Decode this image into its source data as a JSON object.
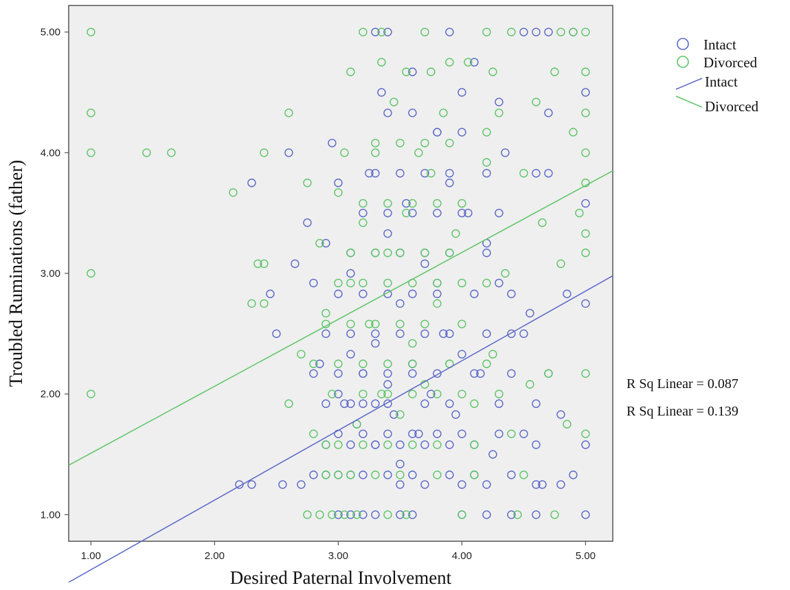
{
  "chart_data": {
    "type": "scatter",
    "xlabel": "Desired Paternal Involvement",
    "ylabel": "Troubled Ruminations (father)",
    "xlim": [
      0.82,
      5.22
    ],
    "ylim": [
      0.78,
      5.22
    ],
    "x_ticks": [
      "1.00",
      "2.00",
      "3.00",
      "4.00",
      "5.00"
    ],
    "y_ticks": [
      "1.00",
      "2.00",
      "3.00",
      "4.00",
      "5.00"
    ],
    "grid": false,
    "legend_position": "right, outside plot, top",
    "series": [
      {
        "name": "Intact",
        "marker": "circle",
        "color": "#5a67c8",
        "fit_line": {
          "name": "Intact",
          "x": [
            0.82,
            5.22
          ],
          "y": [
            0.44,
            2.98
          ]
        },
        "r_sq_label": "R Sq Linear = 0.087",
        "points": [
          [
            2.3,
            3.75
          ],
          [
            2.45,
            2.83
          ],
          [
            2.5,
            2.5
          ],
          [
            2.6,
            4.0
          ],
          [
            2.65,
            3.08
          ],
          [
            2.75,
            3.42
          ],
          [
            2.8,
            2.92
          ],
          [
            2.85,
            2.25
          ],
          [
            2.9,
            3.25
          ],
          [
            2.95,
            4.08
          ],
          [
            3.0,
            3.75
          ],
          [
            3.0,
            2.0
          ],
          [
            3.05,
            1.92
          ],
          [
            3.1,
            2.33
          ],
          [
            3.1,
            3.0
          ],
          [
            3.15,
            1.75
          ],
          [
            3.2,
            2.17
          ],
          [
            3.25,
            3.83
          ],
          [
            3.3,
            2.42
          ],
          [
            3.3,
            1.58
          ],
          [
            3.35,
            4.5
          ],
          [
            3.4,
            2.08
          ],
          [
            3.4,
            3.33
          ],
          [
            3.45,
            1.83
          ],
          [
            3.5,
            2.75
          ],
          [
            3.5,
            1.42
          ],
          [
            3.55,
            3.58
          ],
          [
            3.6,
            2.25
          ],
          [
            3.6,
            4.67
          ],
          [
            3.65,
            1.67
          ],
          [
            3.7,
            3.08
          ],
          [
            3.75,
            2.0
          ],
          [
            3.8,
            2.92
          ],
          [
            3.8,
            4.17
          ],
          [
            3.85,
            2.5
          ],
          [
            3.9,
            3.75
          ],
          [
            3.95,
            1.83
          ],
          [
            4.0,
            4.5
          ],
          [
            4.0,
            2.33
          ],
          [
            4.05,
            3.5
          ],
          [
            4.1,
            4.75
          ],
          [
            4.15,
            2.17
          ],
          [
            4.2,
            3.25
          ],
          [
            4.25,
            1.5
          ],
          [
            4.3,
            2.92
          ],
          [
            4.35,
            4.0
          ],
          [
            4.4,
            2.5
          ],
          [
            4.5,
            1.67
          ],
          [
            4.55,
            2.67
          ],
          [
            4.6,
            3.83
          ],
          [
            4.65,
            1.25
          ],
          [
            4.7,
            2.17
          ],
          [
            4.8,
            1.83
          ],
          [
            4.85,
            2.83
          ],
          [
            4.9,
            1.33
          ],
          [
            5.0,
            4.5
          ],
          [
            5.0,
            3.58
          ],
          [
            5.0,
            2.75
          ],
          [
            5.0,
            1.58
          ],
          [
            5.0,
            1.0
          ],
          [
            3.0,
            1.0
          ],
          [
            3.1,
            1.0
          ],
          [
            3.2,
            1.0
          ],
          [
            3.3,
            1.0
          ],
          [
            3.5,
            1.0
          ],
          [
            3.6,
            1.0
          ],
          [
            4.0,
            1.0
          ],
          [
            4.2,
            1.0
          ],
          [
            4.4,
            1.0
          ],
          [
            4.6,
            1.0
          ],
          [
            2.8,
            1.33
          ],
          [
            2.9,
            1.33
          ],
          [
            3.0,
            1.33
          ],
          [
            3.1,
            1.33
          ],
          [
            3.2,
            1.33
          ],
          [
            3.4,
            1.33
          ],
          [
            3.6,
            1.33
          ],
          [
            3.9,
            1.33
          ],
          [
            4.1,
            1.33
          ],
          [
            4.4,
            1.33
          ],
          [
            2.9,
            1.92
          ],
          [
            3.1,
            1.92
          ],
          [
            3.2,
            1.92
          ],
          [
            3.3,
            1.92
          ],
          [
            3.4,
            1.92
          ],
          [
            3.7,
            1.92
          ],
          [
            3.9,
            1.92
          ],
          [
            4.3,
            1.92
          ],
          [
            4.6,
            1.92
          ],
          [
            2.8,
            2.17
          ],
          [
            3.0,
            2.17
          ],
          [
            3.2,
            2.17
          ],
          [
            3.4,
            2.17
          ],
          [
            3.6,
            2.17
          ],
          [
            3.8,
            2.17
          ],
          [
            4.1,
            2.17
          ],
          [
            4.4,
            2.17
          ],
          [
            2.9,
            2.5
          ],
          [
            3.1,
            2.5
          ],
          [
            3.3,
            2.5
          ],
          [
            3.5,
            2.5
          ],
          [
            3.7,
            2.5
          ],
          [
            3.9,
            2.5
          ],
          [
            4.2,
            2.5
          ],
          [
            4.5,
            2.5
          ],
          [
            3.0,
            2.83
          ],
          [
            3.2,
            2.83
          ],
          [
            3.4,
            2.83
          ],
          [
            3.6,
            2.83
          ],
          [
            3.8,
            2.83
          ],
          [
            4.1,
            2.83
          ],
          [
            4.4,
            2.83
          ],
          [
            3.1,
            3.17
          ],
          [
            3.3,
            3.17
          ],
          [
            3.5,
            3.17
          ],
          [
            3.7,
            3.17
          ],
          [
            3.9,
            3.17
          ],
          [
            4.2,
            3.17
          ],
          [
            3.2,
            3.5
          ],
          [
            3.4,
            3.5
          ],
          [
            3.6,
            3.5
          ],
          [
            3.8,
            3.5
          ],
          [
            4.0,
            3.5
          ],
          [
            4.3,
            3.5
          ],
          [
            3.3,
            3.83
          ],
          [
            3.5,
            3.83
          ],
          [
            3.7,
            3.83
          ],
          [
            3.9,
            3.83
          ],
          [
            4.2,
            3.83
          ],
          [
            4.7,
            3.83
          ],
          [
            3.4,
            4.33
          ],
          [
            3.6,
            4.33
          ],
          [
            3.8,
            4.17
          ],
          [
            4.0,
            4.17
          ],
          [
            4.3,
            4.42
          ],
          [
            4.7,
            4.33
          ],
          [
            3.3,
            5.0
          ],
          [
            3.4,
            5.0
          ],
          [
            3.9,
            5.0
          ],
          [
            4.5,
            5.0
          ],
          [
            4.6,
            5.0
          ],
          [
            4.7,
            5.0
          ],
          [
            4.9,
            5.0
          ],
          [
            2.2,
            1.25
          ],
          [
            2.3,
            1.25
          ],
          [
            2.55,
            1.25
          ],
          [
            2.7,
            1.25
          ],
          [
            3.5,
            1.25
          ],
          [
            3.7,
            1.25
          ],
          [
            4.0,
            1.25
          ],
          [
            4.2,
            1.25
          ],
          [
            4.6,
            1.25
          ],
          [
            4.8,
            1.25
          ],
          [
            2.9,
            1.58
          ],
          [
            3.1,
            1.58
          ],
          [
            3.3,
            1.58
          ],
          [
            3.5,
            1.58
          ],
          [
            3.7,
            1.58
          ],
          [
            3.9,
            1.58
          ],
          [
            4.1,
            1.58
          ],
          [
            4.6,
            1.58
          ],
          [
            3.0,
            1.67
          ],
          [
            3.2,
            1.67
          ],
          [
            3.4,
            1.67
          ],
          [
            3.6,
            1.67
          ],
          [
            3.8,
            1.67
          ],
          [
            4.0,
            1.67
          ],
          [
            4.3,
            1.67
          ]
        ]
      },
      {
        "name": "Divorced",
        "marker": "circle",
        "color": "#5cc466",
        "fit_line": {
          "name": "Divorced",
          "x": [
            0.82,
            5.22
          ],
          "y": [
            1.41,
            3.85
          ]
        },
        "r_sq_label": "R Sq Linear = 0.139",
        "points": [
          [
            1.0,
            5.0
          ],
          [
            1.0,
            4.33
          ],
          [
            1.0,
            4.0
          ],
          [
            1.0,
            3.0
          ],
          [
            1.0,
            2.0
          ],
          [
            1.45,
            4.0
          ],
          [
            1.65,
            4.0
          ],
          [
            2.15,
            3.67
          ],
          [
            2.3,
            2.75
          ],
          [
            2.35,
            3.08
          ],
          [
            2.4,
            2.75
          ],
          [
            2.4,
            3.08
          ],
          [
            2.4,
            4.0
          ],
          [
            2.6,
            4.33
          ],
          [
            2.6,
            1.92
          ],
          [
            2.7,
            2.33
          ],
          [
            2.75,
            3.75
          ],
          [
            2.8,
            1.67
          ],
          [
            2.85,
            3.25
          ],
          [
            2.9,
            2.67
          ],
          [
            2.95,
            2.0
          ],
          [
            3.0,
            3.67
          ],
          [
            3.05,
            4.0
          ],
          [
            3.1,
            2.92
          ],
          [
            3.15,
            1.75
          ],
          [
            3.2,
            3.42
          ],
          [
            3.25,
            2.58
          ],
          [
            3.3,
            4.0
          ],
          [
            3.35,
            2.0
          ],
          [
            3.4,
            3.17
          ],
          [
            3.45,
            4.42
          ],
          [
            3.5,
            1.83
          ],
          [
            3.55,
            3.5
          ],
          [
            3.6,
            2.42
          ],
          [
            3.65,
            4.0
          ],
          [
            3.7,
            2.08
          ],
          [
            3.75,
            3.83
          ],
          [
            3.8,
            2.75
          ],
          [
            3.85,
            4.33
          ],
          [
            3.9,
            2.25
          ],
          [
            3.95,
            3.33
          ],
          [
            4.0,
            2.92
          ],
          [
            4.05,
            4.75
          ],
          [
            4.1,
            1.92
          ],
          [
            4.2,
            3.92
          ],
          [
            4.25,
            2.33
          ],
          [
            4.3,
            4.33
          ],
          [
            4.35,
            3.0
          ],
          [
            4.4,
            1.67
          ],
          [
            4.5,
            3.83
          ],
          [
            4.55,
            2.08
          ],
          [
            4.6,
            4.42
          ],
          [
            4.65,
            3.42
          ],
          [
            4.7,
            2.17
          ],
          [
            4.75,
            4.67
          ],
          [
            4.8,
            3.08
          ],
          [
            4.85,
            1.75
          ],
          [
            4.9,
            4.17
          ],
          [
            4.95,
            3.5
          ],
          [
            5.0,
            5.0
          ],
          [
            5.0,
            4.67
          ],
          [
            5.0,
            4.33
          ],
          [
            5.0,
            4.0
          ],
          [
            5.0,
            3.75
          ],
          [
            5.0,
            3.33
          ],
          [
            5.0,
            3.17
          ],
          [
            5.0,
            2.17
          ],
          [
            5.0,
            1.67
          ],
          [
            2.75,
            1.0
          ],
          [
            2.85,
            1.0
          ],
          [
            2.95,
            1.0
          ],
          [
            3.05,
            1.0
          ],
          [
            3.15,
            1.0
          ],
          [
            3.4,
            1.0
          ],
          [
            3.55,
            1.0
          ],
          [
            4.0,
            1.0
          ],
          [
            4.45,
            1.0
          ],
          [
            4.75,
            1.0
          ],
          [
            2.9,
            1.33
          ],
          [
            3.0,
            1.33
          ],
          [
            3.1,
            1.33
          ],
          [
            3.3,
            1.33
          ],
          [
            3.5,
            1.33
          ],
          [
            3.8,
            1.33
          ],
          [
            4.1,
            1.33
          ],
          [
            4.5,
            1.33
          ],
          [
            2.9,
            1.58
          ],
          [
            3.0,
            1.58
          ],
          [
            3.2,
            1.58
          ],
          [
            3.4,
            1.58
          ],
          [
            3.6,
            1.58
          ],
          [
            3.8,
            1.58
          ],
          [
            4.1,
            1.58
          ],
          [
            2.8,
            2.25
          ],
          [
            3.0,
            2.25
          ],
          [
            3.2,
            2.25
          ],
          [
            3.4,
            2.25
          ],
          [
            3.6,
            2.25
          ],
          [
            3.9,
            2.25
          ],
          [
            4.2,
            2.25
          ],
          [
            2.9,
            2.58
          ],
          [
            3.1,
            2.58
          ],
          [
            3.3,
            2.58
          ],
          [
            3.5,
            2.58
          ],
          [
            3.7,
            2.58
          ],
          [
            4.0,
            2.58
          ],
          [
            3.0,
            2.92
          ],
          [
            3.2,
            2.92
          ],
          [
            3.4,
            2.92
          ],
          [
            3.6,
            2.92
          ],
          [
            3.8,
            2.92
          ],
          [
            4.2,
            2.92
          ],
          [
            3.1,
            3.17
          ],
          [
            3.3,
            3.17
          ],
          [
            3.5,
            3.17
          ],
          [
            3.7,
            3.17
          ],
          [
            3.9,
            3.17
          ],
          [
            3.2,
            3.58
          ],
          [
            3.4,
            3.58
          ],
          [
            3.6,
            3.58
          ],
          [
            3.8,
            3.58
          ],
          [
            4.0,
            3.58
          ],
          [
            3.3,
            4.08
          ],
          [
            3.5,
            4.08
          ],
          [
            3.7,
            4.08
          ],
          [
            3.9,
            4.08
          ],
          [
            4.2,
            4.17
          ],
          [
            3.2,
            5.0
          ],
          [
            3.35,
            5.0
          ],
          [
            3.7,
            5.0
          ],
          [
            4.2,
            5.0
          ],
          [
            4.4,
            5.0
          ],
          [
            4.8,
            5.0
          ],
          [
            4.9,
            5.0
          ],
          [
            3.1,
            4.67
          ],
          [
            3.35,
            4.75
          ],
          [
            3.55,
            4.67
          ],
          [
            3.75,
            4.67
          ],
          [
            3.9,
            4.75
          ],
          [
            4.25,
            4.67
          ],
          [
            3.2,
            2.0
          ],
          [
            3.4,
            2.0
          ],
          [
            3.6,
            2.0
          ],
          [
            3.8,
            2.0
          ],
          [
            4.0,
            2.0
          ],
          [
            4.3,
            2.0
          ]
        ]
      }
    ]
  }
}
